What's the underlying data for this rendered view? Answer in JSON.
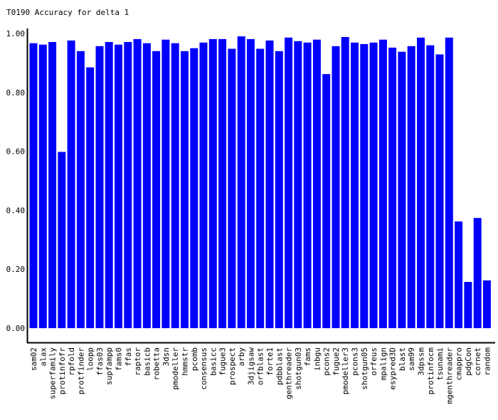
{
  "chart_data": {
    "type": "bar",
    "title": "T0190 Accuracy for delta 1",
    "xlabel": "",
    "ylabel": "",
    "ylim": [
      0,
      1.0
    ],
    "yticks": [
      "0.00",
      "0.20",
      "0.40",
      "0.60",
      "0.80",
      "1.00"
    ],
    "grid": false,
    "bar_color": "#0000ff",
    "categories": [
      "sam02",
      "alax",
      "superfamily",
      "protinfofr",
      "rpfold",
      "protfinder",
      "loopp",
      "ffas03",
      "supfampp",
      "fams0",
      "ffas",
      "raptor",
      "basicb",
      "robetta",
      "3dsn",
      "pmodeller",
      "hmmstr",
      "pcomb",
      "consensus",
      "basicc",
      "fugue3",
      "prospect",
      "arby",
      "3djigsaw",
      "orfblast",
      "forte1",
      "pdbblast",
      "genthreader",
      "shotgun03",
      "fams",
      "inbgu",
      "pcons2",
      "fugue2",
      "pmodeller3",
      "pcons3",
      "shotgun05",
      "orfeus",
      "mpalign",
      "esypred3D",
      "blast",
      "sam99",
      "3dpssm",
      "protinfocm",
      "tsunami",
      "mgenthreader",
      "cmappro",
      "pdgCon",
      "cornet",
      "random"
    ],
    "values": [
      0.967,
      0.962,
      0.971,
      0.598,
      0.976,
      0.94,
      0.885,
      0.957,
      0.971,
      0.962,
      0.971,
      0.981,
      0.967,
      0.94,
      0.979,
      0.967,
      0.94,
      0.95,
      0.969,
      0.981,
      0.981,
      0.948,
      0.99,
      0.981,
      0.948,
      0.976,
      0.94,
      0.986,
      0.974,
      0.969,
      0.979,
      0.862,
      0.957,
      0.988,
      0.969,
      0.964,
      0.969,
      0.979,
      0.952,
      0.938,
      0.957,
      0.986,
      0.96,
      0.929,
      0.986,
      0.362,
      0.157,
      0.374,
      0.162
    ]
  }
}
